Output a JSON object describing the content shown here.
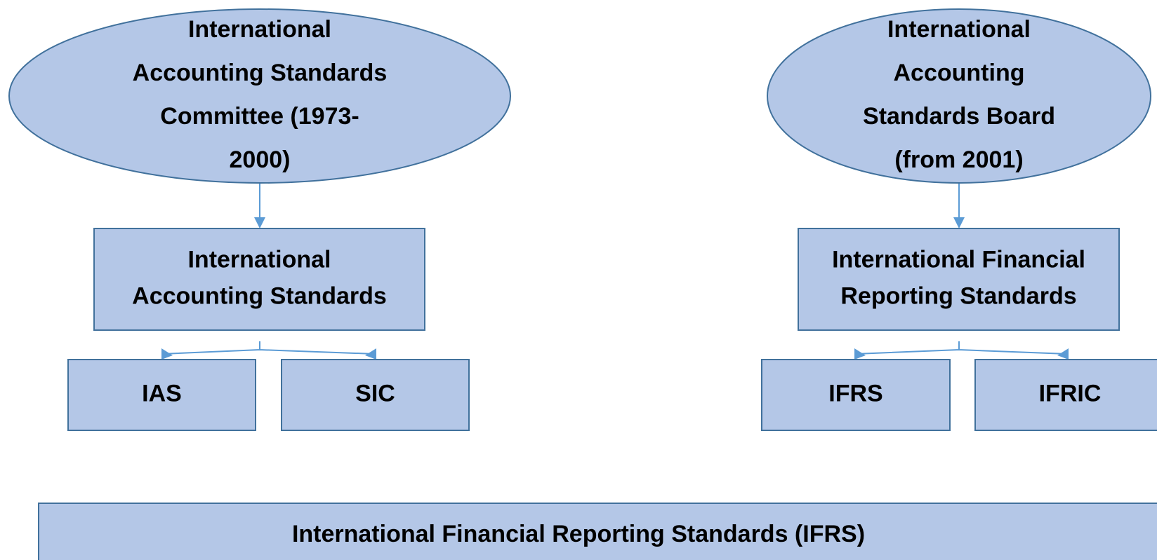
{
  "nodes": [
    {
      "lines": [
        "International",
        "Accounting Standards",
        "Committee (1973-",
        "2000)"
      ]
    },
    {
      "lines": [
        "International",
        "Accounting",
        "Standards Board",
        "(from 2001)"
      ]
    },
    {
      "lines": [
        "International",
        "Accounting Standards"
      ]
    },
    {
      "lines": [
        "International Financial",
        "Reporting Standards"
      ]
    },
    {
      "lines": [
        "IAS"
      ]
    },
    {
      "lines": [
        "SIC"
      ]
    },
    {
      "lines": [
        "IFRS"
      ]
    },
    {
      "lines": [
        "IFRIC"
      ]
    },
    {
      "lines": [
        "International Financial Reporting Standards (IFRS)"
      ]
    }
  ]
}
